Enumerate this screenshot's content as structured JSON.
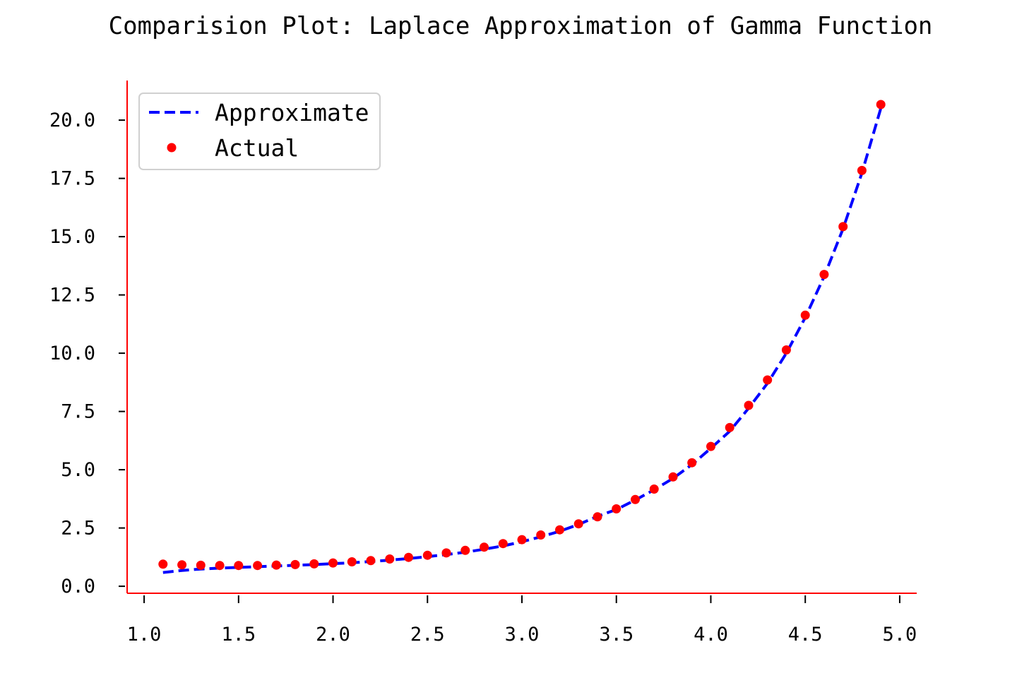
{
  "chart_data": {
    "type": "line",
    "title": "Comparision Plot: Laplace Approximation of Gamma Function",
    "xlabel": "",
    "ylabel": "",
    "xlim": [
      0.91,
      5.09
    ],
    "ylim": [
      -0.3,
      21.7
    ],
    "xticks": [
      1.0,
      1.5,
      2.0,
      2.5,
      3.0,
      3.5,
      4.0,
      4.5,
      5.0
    ],
    "xtick_labels": [
      "1.0",
      "1.5",
      "2.0",
      "2.5",
      "3.0",
      "3.5",
      "4.0",
      "4.5",
      "5.0"
    ],
    "yticks": [
      0.0,
      2.5,
      5.0,
      7.5,
      10.0,
      12.5,
      15.0,
      17.5,
      20.0
    ],
    "ytick_labels": [
      "0.0",
      "2.5",
      "5.0",
      "7.5",
      "10.0",
      "12.5",
      "15.0",
      "17.5",
      "20.0"
    ],
    "grid": false,
    "legend_position": "top-left",
    "axis_color": "#ff0000",
    "x": [
      1.1,
      1.2,
      1.3,
      1.4,
      1.5,
      1.6,
      1.7,
      1.8,
      1.9,
      2.0,
      2.1,
      2.2,
      2.3,
      2.4,
      2.5,
      2.6,
      2.7,
      2.8,
      2.9,
      3.0,
      3.1,
      3.2,
      3.3,
      3.4,
      3.5,
      3.6,
      3.7,
      3.8,
      3.9,
      4.0,
      4.1,
      4.2,
      4.3,
      4.4,
      4.5,
      4.6,
      4.7,
      4.8,
      4.9
    ],
    "series": [
      {
        "name": "Approximate",
        "style": "dashed-line",
        "color": "#0000ff",
        "values": [
          0.59,
          0.68,
          0.74,
          0.78,
          0.81,
          0.84,
          0.87,
          0.9,
          0.93,
          0.97,
          1.01,
          1.06,
          1.12,
          1.19,
          1.27,
          1.36,
          1.46,
          1.59,
          1.73,
          1.91,
          2.12,
          2.36,
          2.65,
          3.0,
          3.29,
          3.7,
          4.14,
          4.63,
          5.22,
          5.92,
          6.65,
          7.64,
          8.71,
          10.0,
          11.53,
          13.29,
          15.34,
          17.73,
          20.51
        ]
      },
      {
        "name": "Actual",
        "style": "markers",
        "color": "#ff0000",
        "values": [
          0.95,
          0.92,
          0.9,
          0.89,
          0.89,
          0.89,
          0.91,
          0.93,
          0.96,
          1.0,
          1.05,
          1.1,
          1.17,
          1.24,
          1.33,
          1.43,
          1.54,
          1.68,
          1.83,
          2.0,
          2.2,
          2.42,
          2.68,
          2.98,
          3.32,
          3.72,
          4.17,
          4.69,
          5.3,
          6.0,
          6.81,
          7.76,
          8.85,
          10.14,
          11.63,
          13.38,
          15.43,
          17.84,
          20.67
        ]
      }
    ]
  }
}
